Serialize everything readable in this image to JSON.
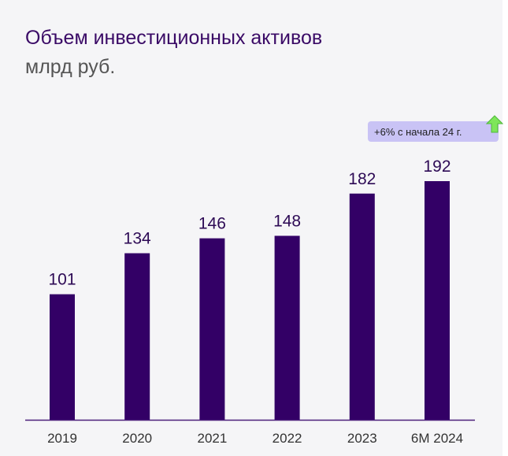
{
  "header": {
    "title": "Объем инвестиционных активов",
    "subtitle": "млрд руб."
  },
  "badge": {
    "text": "+6% с начала 24 г.",
    "icon": "green-up-arrow-icon",
    "color": "#c9c3f5"
  },
  "chart_data": {
    "type": "bar",
    "categories": [
      "2019",
      "2020",
      "2021",
      "2022",
      "2023",
      "6М 2024"
    ],
    "values": [
      101,
      134,
      146,
      148,
      182,
      192
    ],
    "title": "Объем инвестиционных активов",
    "ylabel": "млрд руб.",
    "ylim": [
      0,
      192
    ],
    "grid": false,
    "bar_color": "#330066",
    "axis_color": "#4b1f7a"
  }
}
